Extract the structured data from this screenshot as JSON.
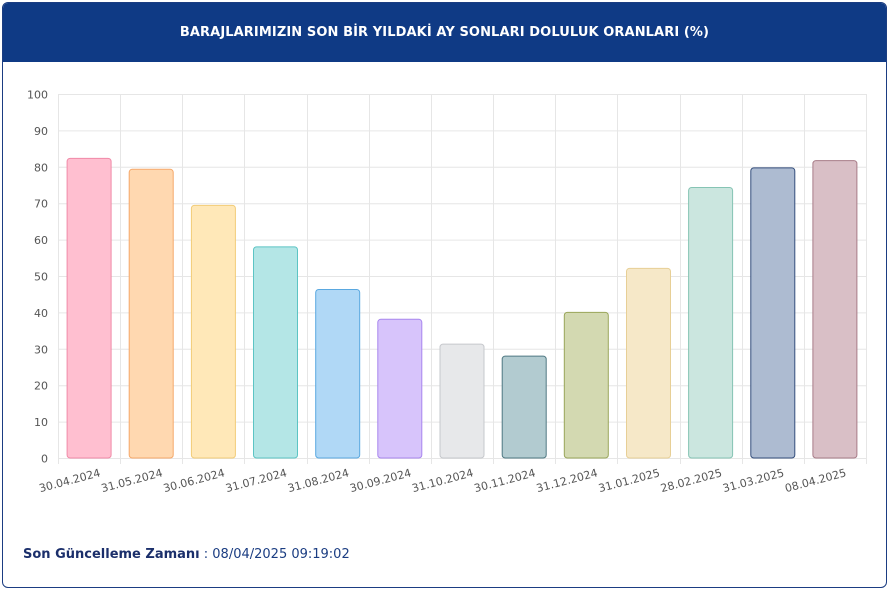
{
  "header": {
    "title": "BARAJLARIMIZIN SON BİR YILDAKİ AY SONLARI DOLULUK ORANLARI (%)"
  },
  "footer": {
    "label": "Son Güncelleme Zamanı",
    "separator": " : ",
    "value": "08/04/2025 09:19:02"
  },
  "chart_data": {
    "type": "bar",
    "title": "BARAJLARIMIZIN SON BİR YILDAKİ AY SONLARI DOLULUK ORANLARI (%)",
    "categories": [
      "30.04.2024",
      "31.05.2024",
      "30.06.2024",
      "31.07.2024",
      "31.08.2024",
      "30.09.2024",
      "31.10.2024",
      "30.11.2024",
      "31.12.2024",
      "31.01.2025",
      "28.02.2025",
      "31.03.2025",
      "08.04.2025"
    ],
    "values": [
      82.3,
      79.3,
      69.4,
      58.0,
      46.3,
      38.1,
      31.3,
      28.0,
      40.0,
      52.1,
      74.3,
      79.7,
      81.7
    ],
    "ylim": [
      0,
      100
    ],
    "yticks": [
      0,
      10,
      20,
      30,
      40,
      50,
      60,
      70,
      80,
      90,
      100
    ],
    "grid": true,
    "colors": [
      {
        "fill": "#ffbfd0",
        "stroke": "#f08aa8"
      },
      {
        "fill": "#ffd8b0",
        "stroke": "#f5a86a"
      },
      {
        "fill": "#ffe8b8",
        "stroke": "#f2cc78"
      },
      {
        "fill": "#b4e6e6",
        "stroke": "#5cc4c4"
      },
      {
        "fill": "#b0d8f6",
        "stroke": "#5aa8e0"
      },
      {
        "fill": "#d7c4fb",
        "stroke": "#a886ee"
      },
      {
        "fill": "#e7e8ea",
        "stroke": "#c6c8cc"
      },
      {
        "fill": "#b2cbd0",
        "stroke": "#4f7882"
      },
      {
        "fill": "#d3d9b1",
        "stroke": "#9aa65a"
      },
      {
        "fill": "#f6e8c8",
        "stroke": "#e7cf96"
      },
      {
        "fill": "#cbe6df",
        "stroke": "#86c4b4"
      },
      {
        "fill": "#adbbd1",
        "stroke": "#344e7c"
      },
      {
        "fill": "#d9bfc6",
        "stroke": "#a87c88"
      }
    ]
  }
}
